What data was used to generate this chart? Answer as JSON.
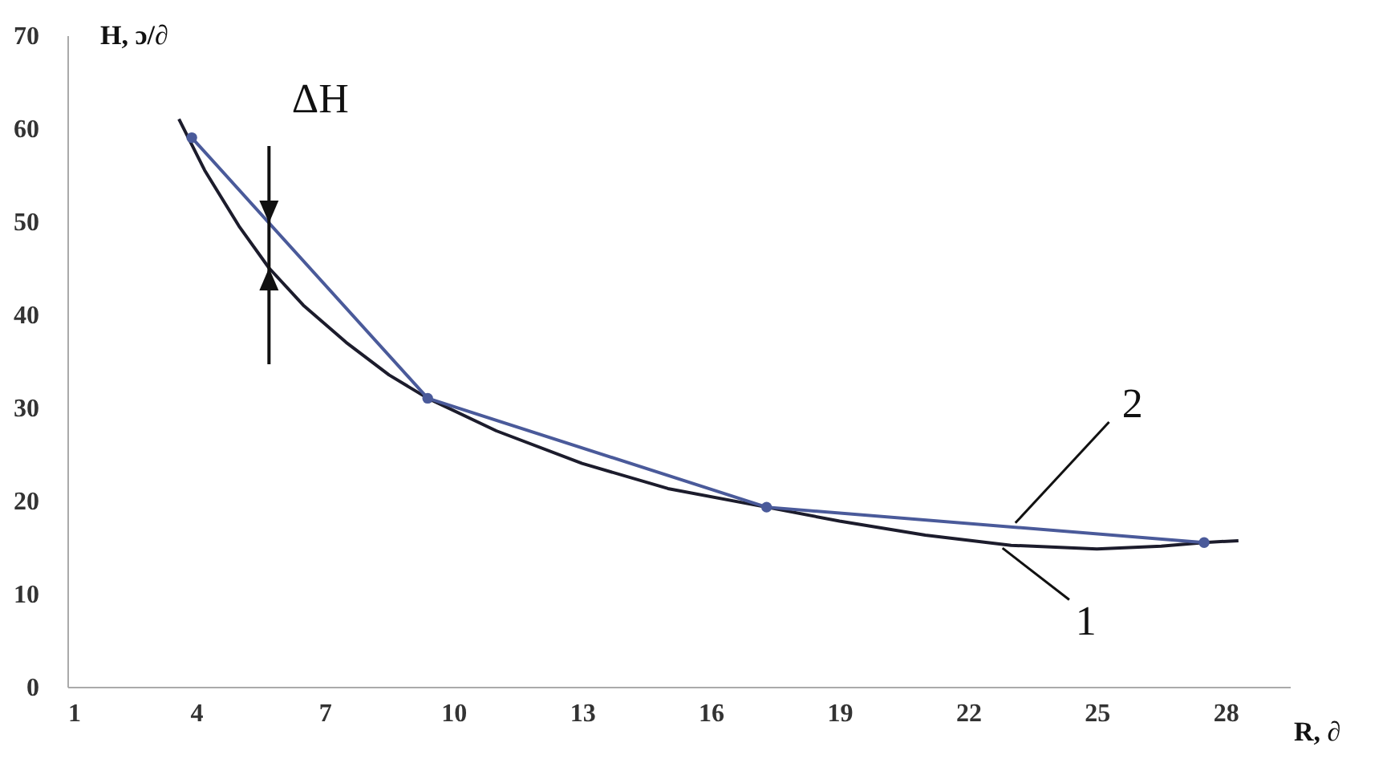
{
  "chart_data": {
    "type": "line",
    "xlabel": "R, ∂",
    "ylabel": "H, ɔ/∂",
    "xlim": [
      1,
      29.5
    ],
    "xticks": [
      1,
      4,
      7,
      10,
      13,
      16,
      19,
      22,
      25,
      28
    ],
    "ylim": [
      0,
      70
    ],
    "yticks": [
      0,
      10,
      20,
      30,
      40,
      50,
      60,
      70
    ],
    "grid": false,
    "series": [
      {
        "color": "#1c1c2c",
        "marker": "none",
        "x": [
          3.6,
          4.2,
          5,
          5.7,
          6.5,
          7.5,
          8.5,
          9.4,
          11,
          13,
          15,
          17.3,
          19,
          21,
          23,
          25,
          26.5,
          27.5,
          28.3
        ],
        "values": [
          61,
          55.5,
          49.5,
          45,
          41,
          37,
          33.5,
          31,
          27.5,
          24,
          21.3,
          19.3,
          17.8,
          16.3,
          15.2,
          14.8,
          15.1,
          15.5,
          15.7
        ]
      },
      {
        "color": "#4a5a9a",
        "marker": "circle",
        "x": [
          3.9,
          9.4,
          17.3,
          27.5
        ],
        "values": [
          59,
          31,
          19.3,
          15.5
        ]
      }
    ],
    "annotations": [
      "ΔH",
      {
        "text": "1",
        "x": 22.8,
        "y": 14.9
      },
      {
        "text": "2",
        "x": 23.1,
        "y": 17.6
      }
    ]
  }
}
